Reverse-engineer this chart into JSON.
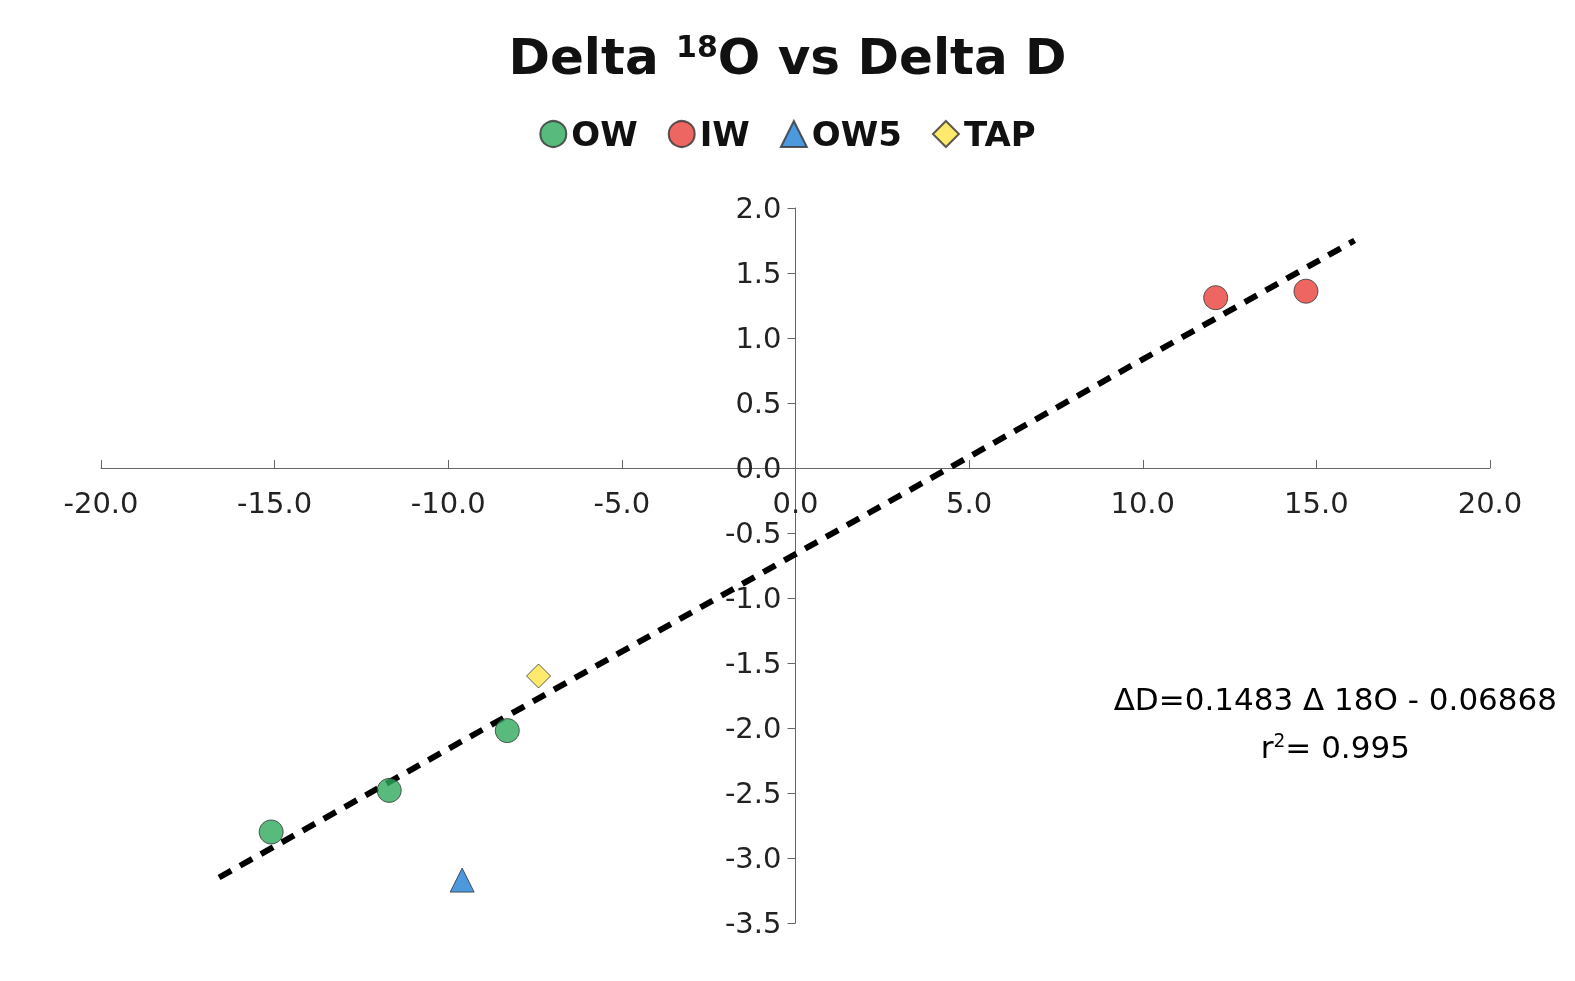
{
  "chart_data": {
    "type": "scatter",
    "title": "Delta $^{18}$O vs Delta D",
    "series": [
      {
        "name": "OW",
        "color": "#2eaa5c",
        "marker": "circle",
        "x": [
          -15.1,
          -11.7,
          -8.3
        ],
        "values": [
          -2.8,
          -2.48,
          -2.02
        ]
      },
      {
        "name": "IW",
        "color": "#e8403a",
        "marker": "circle",
        "x": [
          12.1,
          14.7
        ],
        "values": [
          1.31,
          1.36
        ]
      },
      {
        "name": "OW5",
        "color": "#1f7fd6",
        "marker": "triangle",
        "x": [
          -9.6
        ],
        "values": [
          -3.17
        ]
      },
      {
        "name": "TAP",
        "color": "#ffe54a",
        "marker": "diamond",
        "x": [
          -7.4
        ],
        "values": [
          -1.6
        ]
      },
      {
        "type": "line",
        "color": "#000000",
        "line_style": "dashed",
        "marker": "none",
        "x": [
          -16.6,
          16.1
        ],
        "values": [
          -3.15,
          1.75
        ]
      }
    ],
    "xlim": [
      -20,
      20
    ],
    "xticks": [
      {
        "value": -20,
        "label": "-20.0"
      },
      {
        "value": -15,
        "label": "-15.0"
      },
      {
        "value": -10,
        "label": "-10.0"
      },
      {
        "value": -5,
        "label": "-5.0"
      },
      {
        "value": 0,
        "label": "0.0"
      },
      {
        "value": 5,
        "label": "5.0"
      },
      {
        "value": 10,
        "label": "10.0"
      },
      {
        "value": 15,
        "label": "15.0"
      },
      {
        "value": 20,
        "label": "20.0"
      }
    ],
    "ylim": [
      -3.5,
      2
    ],
    "yticks": [
      {
        "value": -3.5,
        "label": "-3.5"
      },
      {
        "value": -3,
        "label": "-3.0"
      },
      {
        "value": -2.5,
        "label": "-2.5"
      },
      {
        "value": -2,
        "label": "-2.0"
      },
      {
        "value": -1.5,
        "label": "-1.5"
      },
      {
        "value": -1,
        "label": "-1.0"
      },
      {
        "value": -0.5,
        "label": "-0.5"
      },
      {
        "value": 0,
        "label": "0.0"
      },
      {
        "value": 0.5,
        "label": "0.5"
      },
      {
        "value": 1,
        "label": "1.0"
      },
      {
        "value": 1.5,
        "label": "1.5"
      },
      {
        "value": 2,
        "label": "2.0"
      }
    ],
    "grid": false,
    "legend": "top",
    "annotations": [
      "ΔD=0.1483 Δ 18O - 0.06868",
      "r$^{2}$= 0.995"
    ]
  }
}
